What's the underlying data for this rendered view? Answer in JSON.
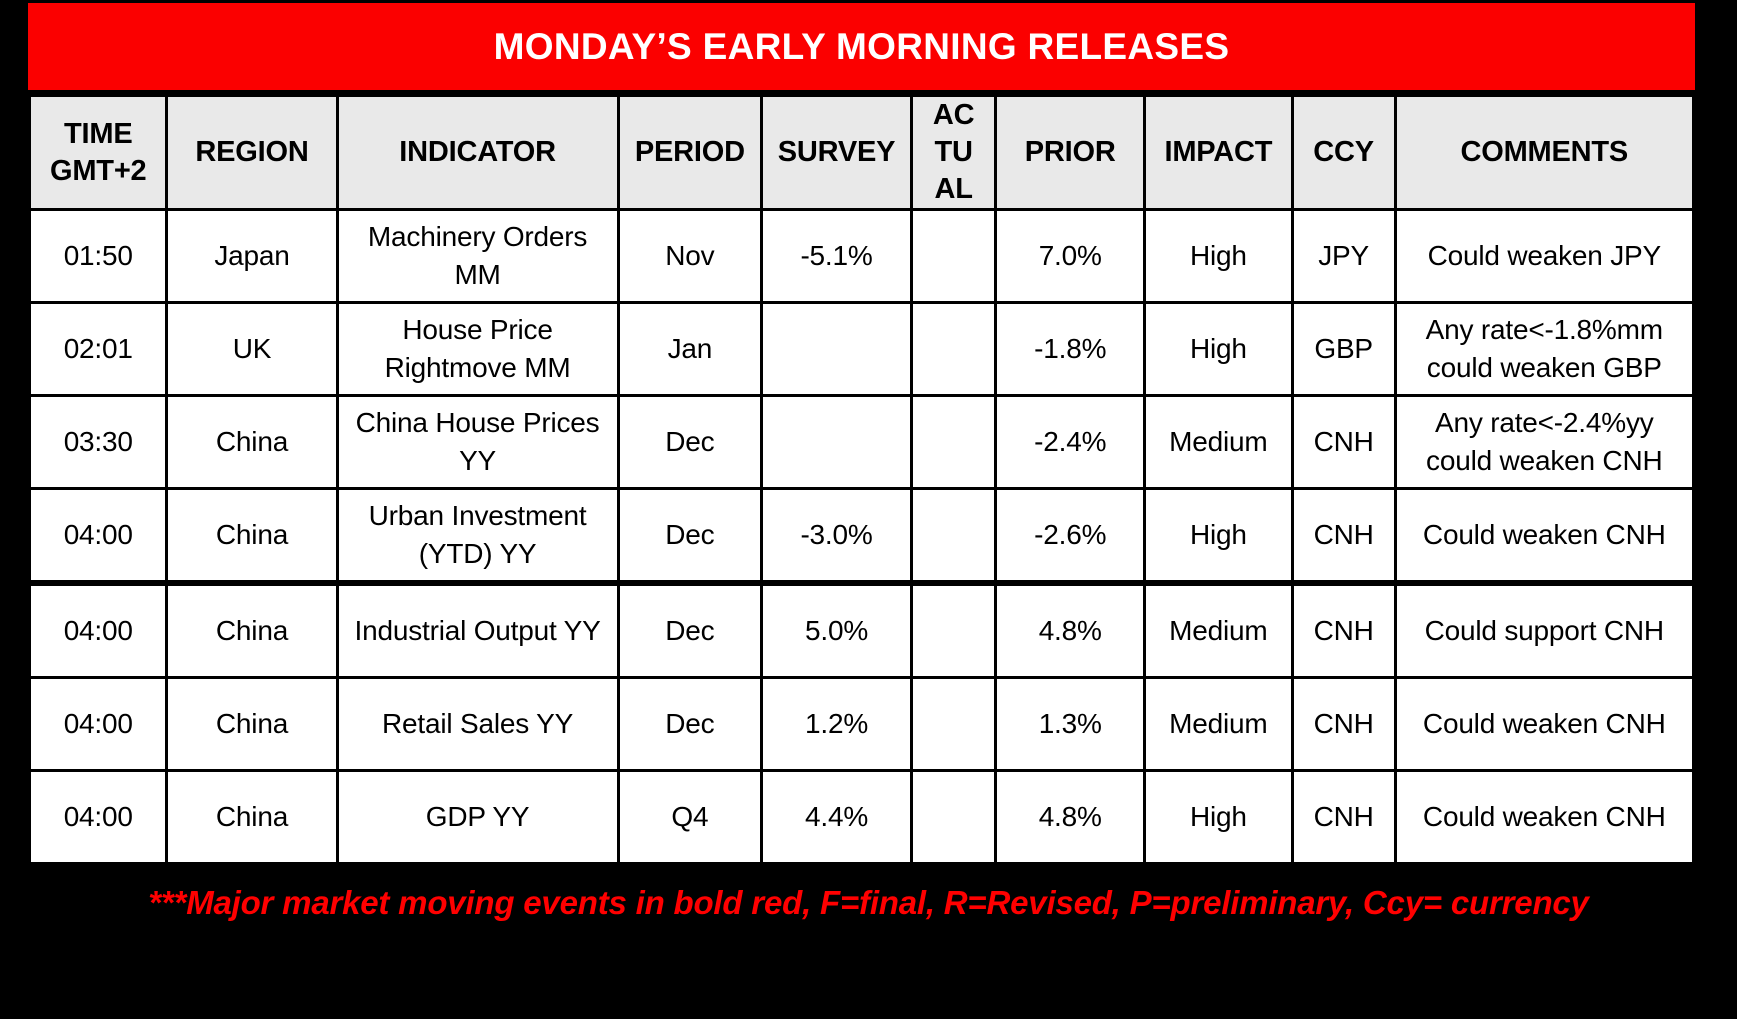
{
  "banner": {
    "title": "MONDAY’S EARLY MORNING RELEASES"
  },
  "table": {
    "columns": [
      {
        "key": "time",
        "label": "TIME\nGMT+2"
      },
      {
        "key": "region",
        "label": "REGION"
      },
      {
        "key": "indicator",
        "label": "INDICATOR"
      },
      {
        "key": "period",
        "label": "PERIOD"
      },
      {
        "key": "survey",
        "label": "SURVEY"
      },
      {
        "key": "actual",
        "label": "AC\nTU\nAL"
      },
      {
        "key": "prior",
        "label": "PRIOR"
      },
      {
        "key": "impact",
        "label": "IMPACT"
      },
      {
        "key": "ccy",
        "label": "CCY"
      },
      {
        "key": "comments",
        "label": "COMMENTS"
      }
    ],
    "rows": [
      {
        "time": "01:50",
        "region": "Japan",
        "indicator": "Machinery Orders MM",
        "period": "Nov",
        "survey": "-5.1%",
        "actual": "",
        "prior": "7.0%",
        "impact": "High",
        "ccy": "JPY",
        "comments": "Could weaken JPY"
      },
      {
        "time": "02:01",
        "region": "UK",
        "indicator": "House Price Rightmove MM",
        "period": "Jan",
        "survey": "",
        "actual": "",
        "prior": "-1.8%",
        "impact": "High",
        "ccy": "GBP",
        "comments": "Any rate<-1.8%mm could weaken GBP"
      },
      {
        "time": "03:30",
        "region": "China",
        "indicator": "China House Prices YY",
        "period": "Dec",
        "survey": "",
        "actual": "",
        "prior": "-2.4%",
        "impact": "Medium",
        "ccy": "CNH",
        "comments": "Any rate<-2.4%yy could weaken CNH"
      },
      {
        "time": "04:00",
        "region": "China",
        "indicator": "Urban Investment (YTD) YY",
        "period": "Dec",
        "survey": "-3.0%",
        "actual": "",
        "prior": "-2.6%",
        "impact": "High",
        "ccy": "CNH",
        "comments": "Could weaken CNH"
      },
      {
        "time": "04:00",
        "region": "China",
        "indicator": "Industrial Output YY",
        "period": "Dec",
        "survey": "5.0%",
        "actual": "",
        "prior": "4.8%",
        "impact": "Medium",
        "ccy": "CNH",
        "comments": "Could support CNH"
      },
      {
        "time": "04:00",
        "region": "China",
        "indicator": "Retail Sales YY",
        "period": "Dec",
        "survey": "1.2%",
        "actual": "",
        "prior": "1.3%",
        "impact": "Medium",
        "ccy": "CNH",
        "comments": "Could weaken CNH"
      },
      {
        "time": "04:00",
        "region": "China",
        "indicator": "GDP YY",
        "period": "Q4",
        "survey": "4.4%",
        "actual": "",
        "prior": "4.8%",
        "impact": "High",
        "ccy": "CNH",
        "comments": "Could weaken CNH"
      }
    ]
  },
  "footnote": {
    "text": "***Major market moving events in bold red, F=final, R=Revised, P=preliminary, Ccy= currency"
  },
  "colors": {
    "page_bg": "#000000",
    "banner_red": "#FB0000",
    "banner_text": "#FFFFFF",
    "header_bg": "#E9E9E9",
    "cell_bg": "#FFFFFF",
    "border": "#000000",
    "footnote_red": "#FF0000"
  }
}
